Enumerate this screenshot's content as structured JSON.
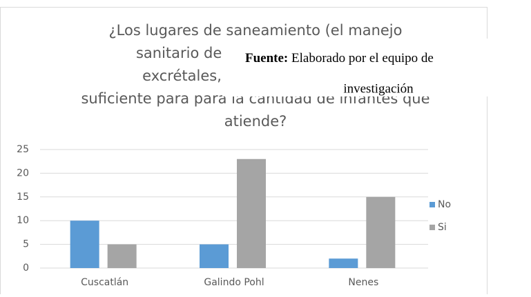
{
  "chart_data": {
    "type": "bar",
    "title": [
      "¿Los lugares de saneamiento (el manejo",
      "sanitario de agua potable, aguas",
      "excrétales, residuos sólidos) es",
      "suficiente para para la cantidad de infantes que",
      "atiende?"
    ],
    "categories": [
      "Cuscatlán",
      "Galindo Pohl",
      "Nenes"
    ],
    "series": [
      {
        "name": "No",
        "color": "#5b9bd5",
        "values": [
          10,
          5,
          2
        ]
      },
      {
        "name": "Si",
        "color": "#a5a5a5",
        "values": [
          5,
          23,
          15
        ]
      }
    ],
    "ylim": [
      0,
      25
    ],
    "yticks": [
      0,
      5,
      10,
      15,
      20,
      25
    ],
    "grid": true,
    "legend": "right"
  },
  "source": {
    "label": "Fuente:",
    "text": "Elaborado por el equipo de",
    "text2": "investigación"
  }
}
